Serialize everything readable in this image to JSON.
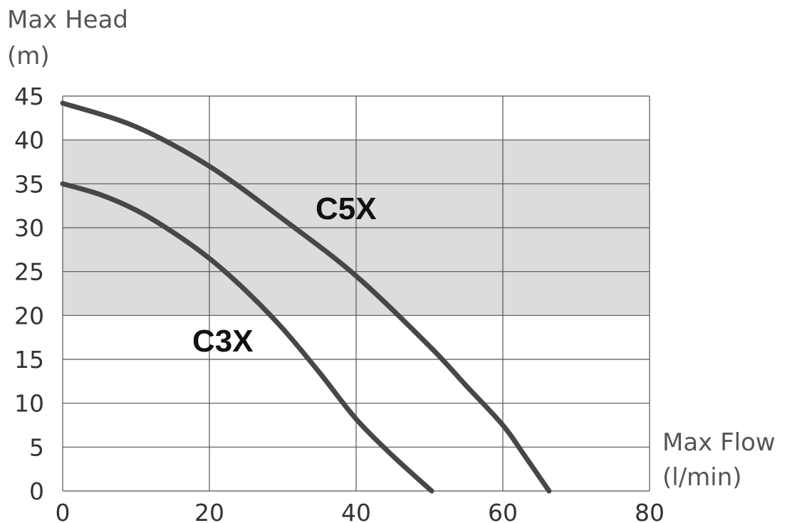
{
  "chart_data": {
    "type": "line",
    "ylabel": [
      "Max Head",
      "(m)"
    ],
    "xlabel": [
      "Max Flow",
      "(l/min)"
    ],
    "xlim": [
      0,
      80
    ],
    "ylim": [
      0,
      45
    ],
    "xticks": [
      0,
      20,
      40,
      60,
      80
    ],
    "yticks": [
      0,
      5,
      10,
      15,
      20,
      25,
      30,
      35,
      40,
      45
    ],
    "grid": true,
    "shaded_band": {
      "y_from": 20,
      "y_to": 40,
      "color": "#dcdcdc"
    },
    "series": [
      {
        "name": "C3X",
        "x": [
          0,
          5,
          10,
          15,
          20,
          25,
          30,
          35,
          40,
          45,
          50.3
        ],
        "y": [
          35,
          33.8,
          32,
          29.5,
          26.5,
          22.8,
          18.5,
          13.5,
          8.2,
          4,
          0
        ]
      },
      {
        "name": "C5X",
        "x": [
          0,
          10,
          20,
          30,
          40,
          50,
          55,
          60,
          63,
          66.3
        ],
        "y": [
          44.2,
          41.5,
          37,
          31,
          24.5,
          16.5,
          12,
          7.5,
          4,
          0
        ]
      }
    ],
    "colors": {
      "curve": "#474747",
      "band": "#dcdcdc",
      "grid": "#555555"
    }
  }
}
